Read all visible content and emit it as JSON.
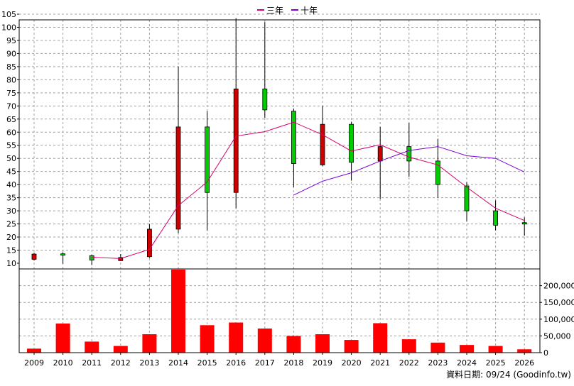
{
  "chart_data": {
    "type": "candlestick-with-volume",
    "legend": [
      {
        "name": "三年",
        "color": "#d6006e"
      },
      {
        "name": "十年",
        "color": "#7a00d6"
      }
    ],
    "years": [
      "2009",
      "2010",
      "2011",
      "2012",
      "2013",
      "2014",
      "2015",
      "2016",
      "2017",
      "2018",
      "2019",
      "2020",
      "2021",
      "2022",
      "2023",
      "2024",
      "2025",
      "2026"
    ],
    "price_axis": {
      "min": 10,
      "max": 105,
      "step": 5,
      "tick_labels": [
        "10",
        "15",
        "20",
        "25",
        "30",
        "35",
        "40",
        "45",
        "50",
        "55",
        "60",
        "65",
        "70",
        "75",
        "80",
        "85",
        "90",
        "95",
        "100",
        "105"
      ]
    },
    "volume_axis": {
      "min": 0,
      "max": 250000,
      "tick_values": [
        0,
        50000,
        100000,
        150000,
        200000
      ],
      "tick_labels": [
        "0",
        "50,000",
        "100,000",
        "150,000",
        "200,000"
      ]
    },
    "candles": [
      {
        "year": "2009",
        "open": 13.5,
        "high": 14.0,
        "low": 11.0,
        "close": 11.5,
        "color": "red"
      },
      {
        "year": "2010",
        "open": 13.2,
        "high": 14.2,
        "low": 9.8,
        "close": 13.6,
        "color": "green"
      },
      {
        "year": "2011",
        "open": 11.2,
        "high": 13.2,
        "low": 9.3,
        "close": 12.9,
        "color": "green"
      },
      {
        "year": "2012",
        "open": 12.2,
        "high": 13.5,
        "low": 10.9,
        "close": 11.0,
        "color": "red"
      },
      {
        "year": "2013",
        "open": 23.0,
        "high": 25.0,
        "low": 12.0,
        "close": 12.5,
        "color": "red"
      },
      {
        "year": "2014",
        "open": 62.0,
        "high": 85.0,
        "low": 21.5,
        "close": 23.0,
        "color": "red"
      },
      {
        "year": "2015",
        "open": 37.0,
        "high": 68.0,
        "low": 22.5,
        "close": 62.0,
        "color": "green"
      },
      {
        "year": "2016",
        "open": 76.5,
        "high": 103.5,
        "low": 31.0,
        "close": 37.0,
        "color": "red"
      },
      {
        "year": "2017",
        "open": 68.5,
        "high": 102.0,
        "low": 65.5,
        "close": 76.5,
        "color": "green"
      },
      {
        "year": "2018",
        "open": 48.0,
        "high": 69.0,
        "low": 39.0,
        "close": 68.0,
        "color": "green"
      },
      {
        "year": "2019",
        "open": 63.0,
        "high": 70.0,
        "low": 47.0,
        "close": 47.5,
        "color": "red"
      },
      {
        "year": "2020",
        "open": 48.5,
        "high": 64.0,
        "low": 41.5,
        "close": 63.0,
        "color": "green"
      },
      {
        "year": "2021",
        "open": 54.5,
        "high": 62.0,
        "low": 34.5,
        "close": 49.0,
        "color": "red"
      },
      {
        "year": "2022",
        "open": 49.0,
        "high": 63.5,
        "low": 43.0,
        "close": 54.5,
        "color": "green"
      },
      {
        "year": "2023",
        "open": 40.0,
        "high": 57.5,
        "low": 35.0,
        "close": 49.0,
        "color": "green"
      },
      {
        "year": "2024",
        "open": 30.0,
        "high": 41.0,
        "low": 26.0,
        "close": 39.5,
        "color": "green"
      },
      {
        "year": "2025",
        "open": 24.5,
        "high": 34.0,
        "low": 22.5,
        "close": 30.0,
        "color": "green"
      },
      {
        "year": "2026",
        "open": 25.0,
        "high": 27.5,
        "low": 20.5,
        "close": 25.5,
        "color": "green"
      }
    ],
    "series": [
      {
        "name": "三年",
        "color": "#d6006e",
        "points": [
          [
            "2011",
            12.3
          ],
          [
            "2012",
            11.8
          ],
          [
            "2013",
            15.3
          ],
          [
            "2014",
            32.0
          ],
          [
            "2015",
            41.0
          ],
          [
            "2016",
            58.5
          ],
          [
            "2017",
            60.2
          ],
          [
            "2018",
            63.8
          ],
          [
            "2019",
            59.0
          ],
          [
            "2020",
            52.8
          ],
          [
            "2021",
            55.2
          ],
          [
            "2022",
            50.5
          ],
          [
            "2023",
            47.5
          ],
          [
            "2024",
            39.0
          ],
          [
            "2025",
            31.0
          ],
          [
            "2026",
            26.3
          ]
        ]
      },
      {
        "name": "十年",
        "color": "#7a00d6",
        "points": [
          [
            "2018",
            36.0
          ],
          [
            "2019",
            41.3
          ],
          [
            "2020",
            44.5
          ],
          [
            "2021",
            49.0
          ],
          [
            "2022",
            53.0
          ],
          [
            "2023",
            54.5
          ],
          [
            "2024",
            51.0
          ],
          [
            "2025",
            50.0
          ],
          [
            "2026",
            44.8
          ]
        ]
      }
    ],
    "volume": [
      {
        "year": "2009",
        "value": 12000
      },
      {
        "year": "2010",
        "value": 87000
      },
      {
        "year": "2011",
        "value": 33000
      },
      {
        "year": "2012",
        "value": 20000
      },
      {
        "year": "2013",
        "value": 55000
      },
      {
        "year": "2014",
        "value": 248000
      },
      {
        "year": "2015",
        "value": 82000
      },
      {
        "year": "2016",
        "value": 90000
      },
      {
        "year": "2017",
        "value": 72000
      },
      {
        "year": "2018",
        "value": 50000
      },
      {
        "year": "2019",
        "value": 55000
      },
      {
        "year": "2020",
        "value": 38000
      },
      {
        "year": "2021",
        "value": 88000
      },
      {
        "year": "2022",
        "value": 40000
      },
      {
        "year": "2023",
        "value": 30000
      },
      {
        "year": "2024",
        "value": 23000
      },
      {
        "year": "2025",
        "value": 20000
      },
      {
        "year": "2026",
        "value": 10000
      }
    ],
    "colors": {
      "up": "#00cc00",
      "down": "#cc0000",
      "volume": "#ff0000",
      "grid": "#a0a0a0",
      "wick": "#000000"
    },
    "grid": true,
    "legend_placement": "top-center",
    "footer": "資料日期: 09/24  (Goodinfo.tw)"
  }
}
